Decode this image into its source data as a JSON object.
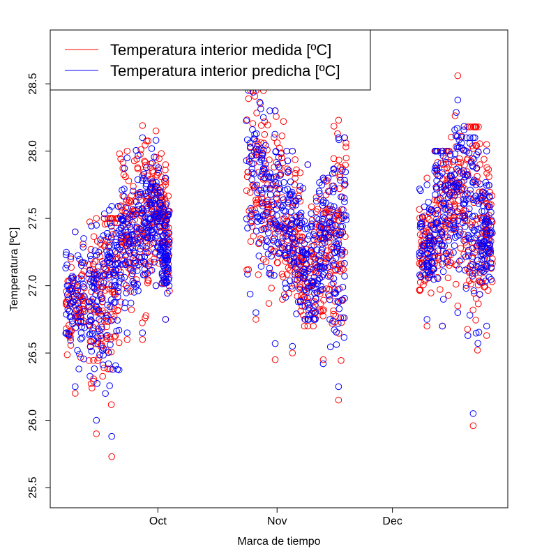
{
  "chart_data": {
    "type": "scatter",
    "title": "",
    "xlabel": "Marca de tiempo",
    "ylabel": "Temperatura [ºC]",
    "ylim": [
      25.35,
      28.9
    ],
    "x_unit": "date",
    "xlim": [
      "2018-09-03",
      "2018-12-31"
    ],
    "y_ticks": [
      "25.5",
      "26.0",
      "26.5",
      "27.0",
      "27.5",
      "28.0",
      "28.5"
    ],
    "x_ticks": [
      {
        "date": "2018-10-01",
        "label": "Oct"
      },
      {
        "date": "2018-11-01",
        "label": "Nov"
      },
      {
        "date": "2018-12-01",
        "label": "Dec"
      }
    ],
    "legend": {
      "position": "top-left",
      "entries": [
        {
          "label": "Temperatura interior medida [ºC]",
          "color": "#ff0000"
        },
        {
          "label": "Temperatura interior predicha [ºC]",
          "color": "#0000ff"
        }
      ]
    },
    "grid": false,
    "series": [
      {
        "name": "Temperatura interior medida [ºC]",
        "color": "#ff0000",
        "marker": "open-circle",
        "clusters": [
          {
            "from": "2018-09-07",
            "to": "2018-09-12",
            "y_range": [
              26.2,
              27.4
            ],
            "center": 26.85
          },
          {
            "from": "2018-09-13",
            "to": "2018-09-17",
            "y_range": [
              25.9,
              27.5
            ],
            "center": 26.85
          },
          {
            "from": "2018-09-17",
            "to": "2018-09-21",
            "y_range": [
              25.73,
              27.5
            ],
            "center": 27.0
          },
          {
            "from": "2018-09-21",
            "to": "2018-09-25",
            "y_range": [
              26.6,
              28.0
            ],
            "center": 27.4
          },
          {
            "from": "2018-09-25",
            "to": "2018-09-29",
            "y_range": [
              26.6,
              28.19
            ],
            "center": 27.5
          },
          {
            "from": "2018-09-29",
            "to": "2018-10-02",
            "y_range": [
              27.0,
              28.15
            ],
            "center": 27.6
          },
          {
            "from": "2018-10-02",
            "to": "2018-10-04",
            "y_range": [
              26.75,
              27.9
            ],
            "center": 27.4
          },
          {
            "from": "2018-10-24",
            "to": "2018-10-29",
            "y_range": [
              26.75,
              28.45
            ],
            "center": 27.8
          },
          {
            "from": "2018-10-29",
            "to": "2018-11-03",
            "y_range": [
              26.45,
              28.3
            ],
            "center": 27.5
          },
          {
            "from": "2018-11-03",
            "to": "2018-11-07",
            "y_range": [
              26.5,
              28.0
            ],
            "center": 27.3
          },
          {
            "from": "2018-11-07",
            "to": "2018-11-11",
            "y_range": [
              26.7,
              27.9
            ],
            "center": 27.1
          },
          {
            "from": "2018-11-11",
            "to": "2018-11-15",
            "y_range": [
              26.45,
              27.8
            ],
            "center": 27.3
          },
          {
            "from": "2018-11-15",
            "to": "2018-11-19",
            "y_range": [
              26.15,
              28.23
            ],
            "center": 27.35
          },
          {
            "from": "2018-12-08",
            "to": "2018-12-12",
            "y_range": [
              26.7,
              27.8
            ],
            "center": 27.3
          },
          {
            "from": "2018-12-12",
            "to": "2018-12-16",
            "y_range": [
              26.7,
              28.0
            ],
            "center": 27.6
          },
          {
            "from": "2018-12-16",
            "to": "2018-12-20",
            "y_range": [
              26.85,
              28.56
            ],
            "center": 27.7
          },
          {
            "from": "2018-12-20",
            "to": "2018-12-24",
            "y_range": [
              25.96,
              28.18
            ],
            "center": 27.5
          },
          {
            "from": "2018-12-24",
            "to": "2018-12-27",
            "y_range": [
              26.63,
              28.05
            ],
            "center": 27.4
          }
        ]
      },
      {
        "name": "Temperatura interior predicha [ºC]",
        "color": "#0000ff",
        "marker": "open-circle",
        "clusters": [
          {
            "from": "2018-09-07",
            "to": "2018-09-12",
            "y_range": [
              26.25,
              27.4
            ],
            "center": 26.9
          },
          {
            "from": "2018-09-13",
            "to": "2018-09-17",
            "y_range": [
              26.0,
              27.45
            ],
            "center": 26.9
          },
          {
            "from": "2018-09-17",
            "to": "2018-09-21",
            "y_range": [
              25.88,
              27.59
            ],
            "center": 27.0
          },
          {
            "from": "2018-09-21",
            "to": "2018-09-25",
            "y_range": [
              26.65,
              27.95
            ],
            "center": 27.35
          },
          {
            "from": "2018-09-25",
            "to": "2018-09-29",
            "y_range": [
              26.65,
              28.1
            ],
            "center": 27.45
          },
          {
            "from": "2018-09-29",
            "to": "2018-10-02",
            "y_range": [
              27.0,
              28.08
            ],
            "center": 27.6
          },
          {
            "from": "2018-10-02",
            "to": "2018-10-04",
            "y_range": [
              26.75,
              27.8
            ],
            "center": 27.3
          },
          {
            "from": "2018-10-24",
            "to": "2018-10-29",
            "y_range": [
              26.8,
              28.48
            ],
            "center": 27.85
          },
          {
            "from": "2018-10-29",
            "to": "2018-11-03",
            "y_range": [
              26.57,
              28.3
            ],
            "center": 27.5
          },
          {
            "from": "2018-11-03",
            "to": "2018-11-07",
            "y_range": [
              26.55,
              28.0
            ],
            "center": 27.35
          },
          {
            "from": "2018-11-07",
            "to": "2018-11-11",
            "y_range": [
              26.75,
              27.9
            ],
            "center": 27.1
          },
          {
            "from": "2018-11-11",
            "to": "2018-11-15",
            "y_range": [
              26.42,
              27.8
            ],
            "center": 27.3
          },
          {
            "from": "2018-11-15",
            "to": "2018-11-19",
            "y_range": [
              26.25,
              28.1
            ],
            "center": 27.35
          },
          {
            "from": "2018-12-08",
            "to": "2018-12-12",
            "y_range": [
              26.75,
              27.75
            ],
            "center": 27.3
          },
          {
            "from": "2018-12-12",
            "to": "2018-12-16",
            "y_range": [
              26.7,
              28.0
            ],
            "center": 27.6
          },
          {
            "from": "2018-12-16",
            "to": "2018-12-20",
            "y_range": [
              26.8,
              28.38
            ],
            "center": 27.7
          },
          {
            "from": "2018-12-20",
            "to": "2018-12-24",
            "y_range": [
              26.05,
              28.1
            ],
            "center": 27.5
          },
          {
            "from": "2018-12-24",
            "to": "2018-12-27",
            "y_range": [
              26.7,
              28.0
            ],
            "center": 27.4
          }
        ]
      }
    ]
  }
}
